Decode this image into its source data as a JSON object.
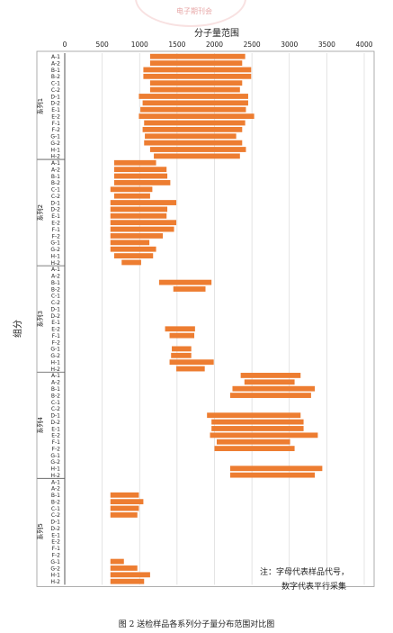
{
  "figure": {
    "caption": "图 2   送检样品各系列分子量分布范围对比图",
    "note_line1": "注：字母代表样品代号，",
    "note_line2": "数字代表平行采集",
    "watermark": "电子期刊会"
  },
  "chart_data": {
    "type": "bar",
    "orientation": "horizontal-range",
    "title": "分子量范围",
    "ylabel": "组分",
    "xlim": [
      0,
      4000
    ],
    "xticks": [
      0,
      500,
      1000,
      1500,
      2000,
      2500,
      3000,
      3500,
      4000
    ],
    "grid": "x-major",
    "color": "#ed7d31",
    "categories": [
      "A-1",
      "A-2",
      "B-1",
      "B-2",
      "C-1",
      "C-2",
      "D-1",
      "D-2",
      "E-1",
      "E-2",
      "F-1",
      "F-2",
      "G-1",
      "G-2",
      "H-1",
      "H-2"
    ],
    "groups": [
      {
        "name": "系列1",
        "ranges": [
          [
            1140,
            2410
          ],
          [
            1140,
            2370
          ],
          [
            1050,
            2490
          ],
          [
            1050,
            2490
          ],
          [
            1140,
            2370
          ],
          [
            1140,
            2340
          ],
          [
            990,
            2450
          ],
          [
            1040,
            2450
          ],
          [
            1010,
            2420
          ],
          [
            990,
            2530
          ],
          [
            1060,
            2410
          ],
          [
            1040,
            2370
          ],
          [
            1070,
            2290
          ],
          [
            1060,
            2370
          ],
          [
            1140,
            2420
          ],
          [
            1190,
            2340
          ]
        ]
      },
      {
        "name": "系列2",
        "ranges": [
          [
            660,
            1220
          ],
          [
            660,
            1360
          ],
          [
            660,
            1370
          ],
          [
            660,
            1410
          ],
          [
            610,
            1170
          ],
          [
            660,
            1140
          ],
          [
            610,
            1490
          ],
          [
            610,
            1370
          ],
          [
            610,
            1360
          ],
          [
            610,
            1490
          ],
          [
            610,
            1460
          ],
          [
            610,
            1310
          ],
          [
            610,
            1130
          ],
          [
            610,
            1220
          ],
          [
            660,
            1180
          ],
          [
            760,
            1020
          ]
        ]
      },
      {
        "name": "系列3",
        "ranges": [
          null,
          null,
          [
            1260,
            1960
          ],
          [
            1450,
            1880
          ],
          null,
          null,
          null,
          null,
          null,
          [
            1340,
            1740
          ],
          [
            1400,
            1730
          ],
          null,
          [
            1430,
            1690
          ],
          [
            1420,
            1690
          ],
          [
            1400,
            1990
          ],
          [
            1490,
            1870
          ]
        ]
      },
      {
        "name": "系列4",
        "ranges": [
          [
            2350,
            3150
          ],
          [
            2400,
            3070
          ],
          [
            2240,
            3340
          ],
          [
            2210,
            3290
          ],
          null,
          null,
          [
            1900,
            3150
          ],
          [
            1960,
            3190
          ],
          [
            1960,
            3190
          ],
          [
            1940,
            3380
          ],
          [
            2030,
            3010
          ],
          [
            2000,
            3070
          ],
          null,
          null,
          [
            2210,
            3440
          ],
          [
            2210,
            3340
          ]
        ]
      },
      {
        "name": "系列5",
        "ranges": [
          null,
          null,
          [
            610,
            990
          ],
          [
            610,
            1050
          ],
          [
            610,
            990
          ],
          [
            610,
            970
          ],
          null,
          null,
          null,
          null,
          null,
          null,
          [
            610,
            790
          ],
          [
            610,
            970
          ],
          [
            610,
            1140
          ],
          [
            610,
            1060
          ]
        ]
      }
    ]
  }
}
